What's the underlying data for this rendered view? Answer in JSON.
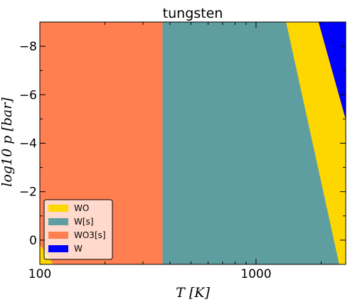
{
  "chart_data": {
    "type": "heatmap",
    "title": "tungsten",
    "xlabel": "T [K]",
    "ylabel": "log10 p [bar]",
    "x_scale": "log",
    "xlim": [
      100,
      2600
    ],
    "ylim": [
      1.0,
      -9.0
    ],
    "x_ticks": [
      {
        "value": 100,
        "label": "100"
      },
      {
        "value": 1000,
        "label": "1000"
      }
    ],
    "y_ticks": [
      {
        "value": -8,
        "label": "−8"
      },
      {
        "value": -6,
        "label": "−6"
      },
      {
        "value": -4,
        "label": "−4"
      },
      {
        "value": -2,
        "label": "−2"
      },
      {
        "value": 0,
        "label": "0"
      }
    ],
    "legend_position": "lower-left",
    "series": [
      {
        "name": "WO",
        "color": "#FFD700"
      },
      {
        "name": "W[s]",
        "color": "#5F9EA0"
      },
      {
        "name": "WO3[s]",
        "color": "#FF7F50"
      },
      {
        "name": "W",
        "color": "#0000FF"
      }
    ],
    "regions": [
      {
        "name": "WO3[s]",
        "polygon": [
          [
            100,
            -9
          ],
          [
            370,
            -9
          ],
          [
            370,
            1
          ],
          [
            100,
            1
          ]
        ]
      },
      {
        "name": "W[s]",
        "polygon": [
          [
            370,
            -9
          ],
          [
            1380,
            -9
          ],
          [
            2430,
            1
          ],
          [
            370,
            1
          ]
        ]
      },
      {
        "name": "WO",
        "polygon": [
          [
            1380,
            -9
          ],
          [
            1950,
            -9
          ],
          [
            2600,
            -5.0
          ],
          [
            2600,
            1
          ],
          [
            2430,
            1
          ]
        ]
      },
      {
        "name": "W",
        "polygon": [
          [
            1950,
            -9
          ],
          [
            2600,
            -9
          ],
          [
            2600,
            -5.0
          ]
        ]
      },
      {
        "name": "WO",
        "polygon": [
          [
            100,
            0.2
          ],
          [
            108,
            0.6
          ],
          [
            115,
            1
          ],
          [
            100,
            1
          ]
        ]
      }
    ]
  }
}
